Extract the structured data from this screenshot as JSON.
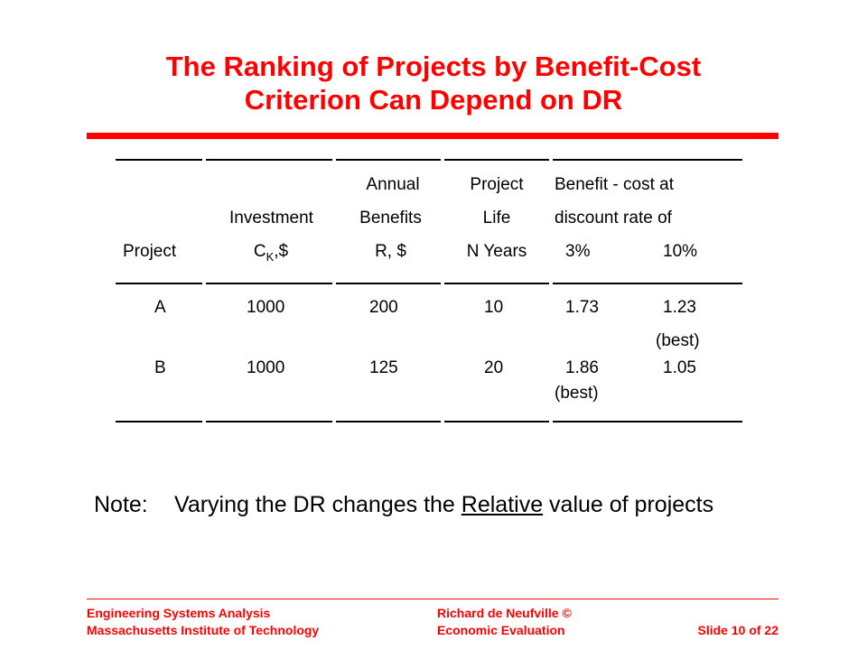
{
  "title": {
    "line1": "The Ranking of Projects by Benefit-Cost",
    "line2": "Criterion Can Depend on DR"
  },
  "table": {
    "headers": {
      "project": "Project",
      "investment": [
        "Investment",
        "C",
        "K",
        ",$"
      ],
      "annual_benefits": [
        "Annual",
        "Benefits",
        "R, $"
      ],
      "project_life": [
        "Project",
        "Life",
        "N Years"
      ],
      "bc_group": [
        "Benefit - cost at",
        "discount rate of"
      ],
      "rate_3": "3%",
      "rate_10": "10%"
    },
    "rows": [
      {
        "project": "A",
        "investment": "1000",
        "benefits": "200",
        "life": "10",
        "bc3": "1.73",
        "bc3_note": "",
        "bc10": "1.23",
        "bc10_note": "(best)"
      },
      {
        "project": "B",
        "investment": "1000",
        "benefits": "125",
        "life": "20",
        "bc3": "1.86",
        "bc3_note": "(best)",
        "bc10": "1.05",
        "bc10_note": ""
      }
    ]
  },
  "note": {
    "label": "Note:",
    "text_before": "Varying the DR changes the ",
    "emphasis": "Relative",
    "text_after": " value of projects"
  },
  "footer": {
    "left_line1": "Engineering Systems Analysis",
    "left_line2": "Massachusetts Institute of Technology",
    "center_line1": "Richard de Neufville  ©",
    "center_line2": "Economic Evaluation",
    "slide": "Slide 10 of 22"
  },
  "colors": {
    "accent": "#ff0000",
    "text": "#000000"
  }
}
